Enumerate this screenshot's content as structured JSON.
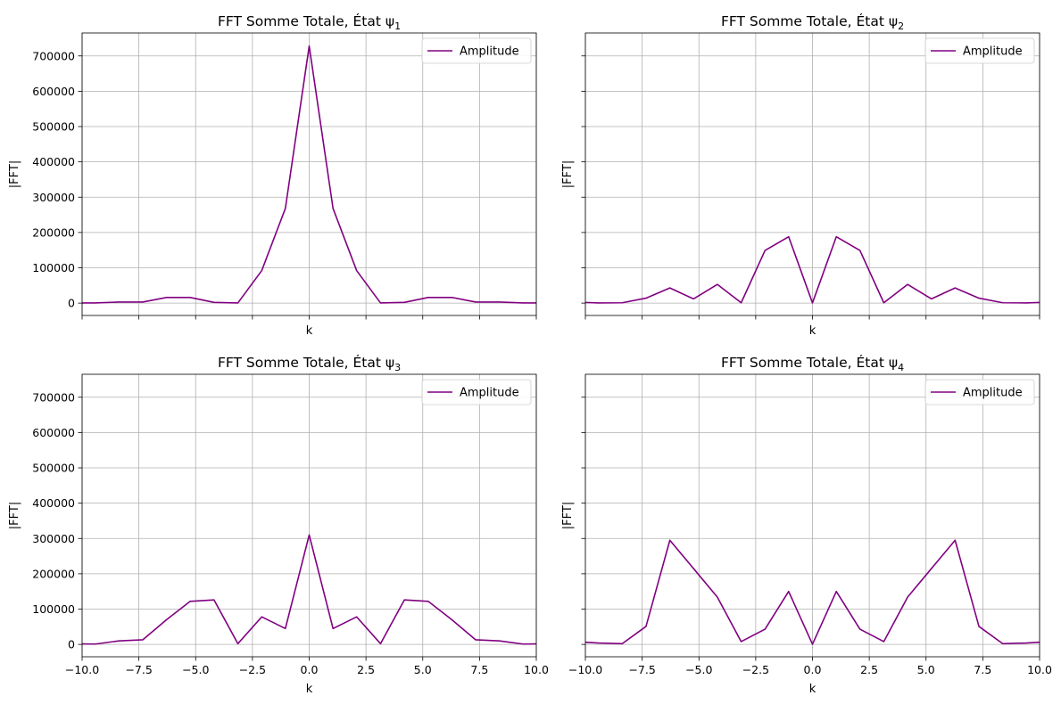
{
  "chart_data": [
    {
      "type": "line",
      "title": "FFT Somme Totale, État ψ",
      "title_sub": "1",
      "xlabel": "k",
      "ylabel": "|FFT|",
      "xlim": [
        -10,
        10
      ],
      "ylim": [
        -35000,
        765000
      ],
      "xticks": [
        -10,
        -7.5,
        -5,
        -2.5,
        0,
        2.5,
        5,
        7.5,
        10
      ],
      "yticks": [
        0,
        100000,
        200000,
        300000,
        400000,
        500000,
        600000,
        700000
      ],
      "show_xticklabels": false,
      "show_yticklabels": true,
      "grid": true,
      "legend": "top-right",
      "color": "#800080",
      "series": [
        {
          "name": "Amplitude",
          "x": [
            -10.47,
            -9.42,
            -8.38,
            -7.33,
            -6.28,
            -5.24,
            -4.19,
            -3.14,
            -2.09,
            -1.05,
            0,
            1.05,
            2.09,
            3.14,
            4.19,
            5.24,
            6.28,
            7.33,
            8.38,
            9.42,
            10.47
          ],
          "y": [
            500,
            500,
            3000,
            3000,
            16000,
            16000,
            2000,
            500,
            92000,
            268000,
            728000,
            268000,
            92000,
            500,
            2000,
            16000,
            16000,
            3000,
            3000,
            500,
            500
          ]
        }
      ]
    },
    {
      "type": "line",
      "title": "FFT Somme Totale, État ψ",
      "title_sub": "2",
      "xlabel": "k",
      "ylabel": "|FFT|",
      "xlim": [
        -10,
        10
      ],
      "ylim": [
        -35000,
        765000
      ],
      "xticks": [
        -10,
        -7.5,
        -5,
        -2.5,
        0,
        2.5,
        5,
        7.5,
        10
      ],
      "yticks": [
        0,
        100000,
        200000,
        300000,
        400000,
        500000,
        600000,
        700000
      ],
      "show_xticklabels": false,
      "show_yticklabels": false,
      "grid": true,
      "legend": "top-right",
      "color": "#800080",
      "series": [
        {
          "name": "Amplitude",
          "x": [
            -10.47,
            -9.42,
            -8.38,
            -7.33,
            -6.28,
            -5.24,
            -4.19,
            -3.14,
            -2.09,
            -1.05,
            0,
            1.05,
            2.09,
            3.14,
            4.19,
            5.24,
            6.28,
            7.33,
            8.38,
            9.42,
            10.47
          ],
          "y": [
            3000,
            500,
            1000,
            14000,
            43000,
            12000,
            53000,
            1000,
            149000,
            188000,
            500,
            188000,
            149000,
            1000,
            53000,
            12000,
            43000,
            14000,
            1000,
            500,
            3000
          ]
        }
      ]
    },
    {
      "type": "line",
      "title": "FFT Somme Totale, État ψ",
      "title_sub": "3",
      "xlabel": "k",
      "ylabel": "|FFT|",
      "xlim": [
        -10,
        10
      ],
      "ylim": [
        -35000,
        765000
      ],
      "xticks": [
        -10,
        -7.5,
        -5,
        -2.5,
        0,
        2.5,
        5,
        7.5,
        10
      ],
      "xticklabels": [
        "−10.0",
        "−7.5",
        "−5.0",
        "−2.5",
        "0.0",
        "2.5",
        "5.0",
        "7.5",
        "10.0"
      ],
      "yticks": [
        0,
        100000,
        200000,
        300000,
        400000,
        500000,
        600000,
        700000
      ],
      "show_xticklabels": true,
      "show_yticklabels": true,
      "grid": true,
      "legend": "top-right",
      "color": "#800080",
      "series": [
        {
          "name": "Amplitude",
          "x": [
            -10.47,
            -9.42,
            -8.38,
            -7.33,
            -6.28,
            -5.24,
            -4.19,
            -3.14,
            -2.09,
            -1.05,
            0,
            1.05,
            2.09,
            3.14,
            4.19,
            5.24,
            6.28,
            7.33,
            8.38,
            9.42,
            10.47
          ],
          "y": [
            2000,
            1000,
            10000,
            13000,
            70000,
            122000,
            126000,
            2000,
            78000,
            45000,
            310000,
            45000,
            78000,
            2000,
            126000,
            122000,
            70000,
            13000,
            10000,
            1000,
            2000
          ]
        }
      ]
    },
    {
      "type": "line",
      "title": "FFT Somme Totale, État ψ",
      "title_sub": "4",
      "xlabel": "k",
      "ylabel": "|FFT|",
      "xlim": [
        -10,
        10
      ],
      "ylim": [
        -35000,
        765000
      ],
      "xticks": [
        -10,
        -7.5,
        -5,
        -2.5,
        0,
        2.5,
        5,
        7.5,
        10
      ],
      "xticklabels": [
        "−10.0",
        "−7.5",
        "−5.0",
        "−2.5",
        "0.0",
        "2.5",
        "5.0",
        "7.5",
        "10.0"
      ],
      "yticks": [
        0,
        100000,
        200000,
        300000,
        400000,
        500000,
        600000,
        700000
      ],
      "show_xticklabels": true,
      "show_yticklabels": false,
      "grid": true,
      "legend": "top-right",
      "color": "#800080",
      "series": [
        {
          "name": "Amplitude",
          "x": [
            -10.47,
            -9.42,
            -8.38,
            -7.33,
            -6.28,
            -5.24,
            -4.19,
            -3.14,
            -2.09,
            -1.05,
            0,
            1.05,
            2.09,
            3.14,
            4.19,
            5.24,
            6.28,
            7.33,
            8.38,
            9.42,
            10.47
          ],
          "y": [
            8000,
            4000,
            2000,
            51000,
            295000,
            215000,
            134000,
            8000,
            43000,
            150000,
            500,
            150000,
            43000,
            8000,
            134000,
            215000,
            295000,
            51000,
            2000,
            4000,
            8000
          ]
        }
      ]
    }
  ]
}
